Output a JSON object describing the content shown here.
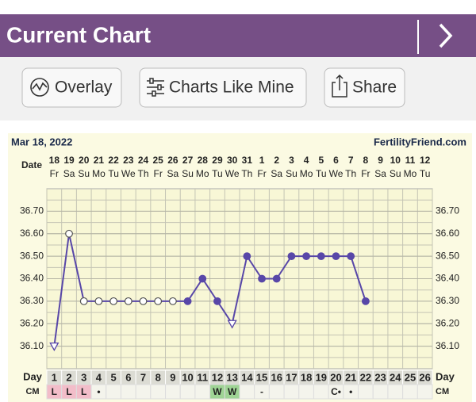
{
  "header": {
    "title": "Current Chart"
  },
  "toolbar": {
    "buttons": [
      "Overlay",
      "Charts Like Mine",
      "Share"
    ]
  },
  "chart_data": {
    "type": "line",
    "date_label": "Mar 18, 2022",
    "source": "FertilityFriend.com",
    "date_row_label": "Date",
    "day_row_label": "Day",
    "cm_row_label": "CM",
    "categories": [
      1,
      2,
      3,
      4,
      5,
      6,
      7,
      8,
      9,
      10,
      11,
      12,
      13,
      14,
      15,
      16,
      17,
      18,
      19,
      20,
      21,
      22,
      23,
      24,
      25,
      26
    ],
    "dates": [
      "18",
      "19",
      "20",
      "21",
      "22",
      "23",
      "24",
      "25",
      "26",
      "27",
      "28",
      "29",
      "30",
      "31",
      "1",
      "2",
      "3",
      "4",
      "5",
      "6",
      "7",
      "8",
      "9",
      "10",
      "11",
      "12"
    ],
    "weekdays": [
      "Fr",
      "Sa",
      "Su",
      "Mo",
      "Tu",
      "We",
      "Th",
      "Fr",
      "Sa",
      "Su",
      "Mo",
      "Tu",
      "We",
      "Th",
      "Fr",
      "Sa",
      "Su",
      "Mo",
      "Tu",
      "We",
      "Th",
      "Fr",
      "Sa",
      "Su",
      "Mo",
      "Tu"
    ],
    "series": [
      {
        "color": "#5847a8",
        "values": [
          36.1,
          36.6,
          36.3,
          36.3,
          36.3,
          36.3,
          36.3,
          36.3,
          36.3,
          36.3,
          36.4,
          36.3,
          36.2,
          36.5,
          36.4,
          36.4,
          36.5,
          36.5,
          36.5,
          36.5,
          36.5,
          36.3,
          null,
          null,
          null,
          null
        ],
        "markers": [
          "triangle",
          "open",
          "open",
          "open",
          "open",
          "open",
          "open",
          "open",
          "open",
          "filled",
          "filled",
          "filled",
          "triangle",
          "filled",
          "filled",
          "filled",
          "filled",
          "filled",
          "filled",
          "filled",
          "filled",
          "filled",
          null,
          null,
          null,
          null
        ]
      }
    ],
    "cm": [
      "L",
      "L",
      "L",
      "•",
      null,
      null,
      null,
      null,
      null,
      null,
      null,
      "W",
      "W",
      null,
      "-",
      null,
      null,
      null,
      null,
      "C•",
      "•",
      null,
      null,
      null,
      null,
      null
    ],
    "cm_fills": [
      "#f2bdc9",
      "#f2bdc9",
      "#f2bdc9",
      null,
      null,
      null,
      null,
      null,
      null,
      null,
      null,
      "#9fd495",
      "#9fd495",
      null,
      null,
      null,
      null,
      null,
      null,
      null,
      null,
      null,
      null,
      null,
      null,
      null
    ],
    "ylim": [
      36.0,
      36.8
    ],
    "yticks": [
      {
        "value": 36.1,
        "label": "36.10"
      },
      {
        "value": 36.2,
        "label": "36.20"
      },
      {
        "value": 36.3,
        "label": "36.30"
      },
      {
        "value": 36.4,
        "label": "36.40"
      },
      {
        "value": 36.5,
        "label": "36.50"
      },
      {
        "value": 36.6,
        "label": "36.60"
      },
      {
        "value": 36.7,
        "label": "36.70"
      }
    ],
    "grid_step": 0.05,
    "grid": true
  }
}
